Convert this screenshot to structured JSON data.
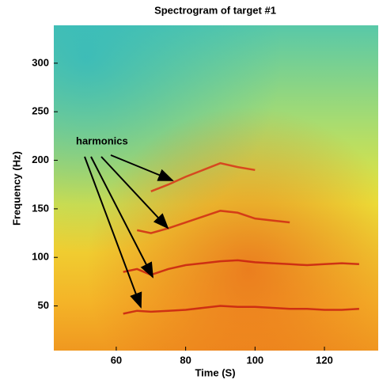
{
  "chart_data": {
    "type": "line",
    "title": "Spectrogram of target #1",
    "xlabel": "Time (S)",
    "ylabel": "Frequency (Hz)",
    "annotation": "harmonics",
    "xlim": [
      42,
      135.5
    ],
    "xticks": [
      60,
      80,
      100,
      120
    ],
    "ylim": [
      4,
      339
    ],
    "yticks": [
      50,
      100,
      150,
      200,
      250,
      300
    ],
    "x": [
      62,
      66,
      70,
      75,
      80,
      85,
      90,
      95,
      100,
      105,
      110,
      115,
      120,
      125,
      130
    ],
    "series": [
      {
        "color": "#c81e10",
        "values": [
          42,
          45,
          44,
          45,
          46,
          48,
          50,
          49,
          49,
          48,
          47,
          47,
          46,
          46,
          47
        ]
      },
      {
        "color": "#c81e10",
        "values": [
          85,
          88,
          82,
          88,
          92,
          94,
          96,
          97,
          95,
          94,
          93,
          92,
          93,
          94,
          93
        ]
      },
      {
        "color": "#d02a14",
        "values": [
          null,
          128,
          125,
          130,
          136,
          142,
          148,
          146,
          140,
          138,
          136,
          null,
          null,
          null,
          null
        ]
      },
      {
        "color": "#d83418",
        "values": [
          null,
          null,
          168,
          175,
          183,
          190,
          197,
          193,
          190,
          null,
          null,
          null,
          null,
          null,
          null
        ]
      }
    ]
  }
}
